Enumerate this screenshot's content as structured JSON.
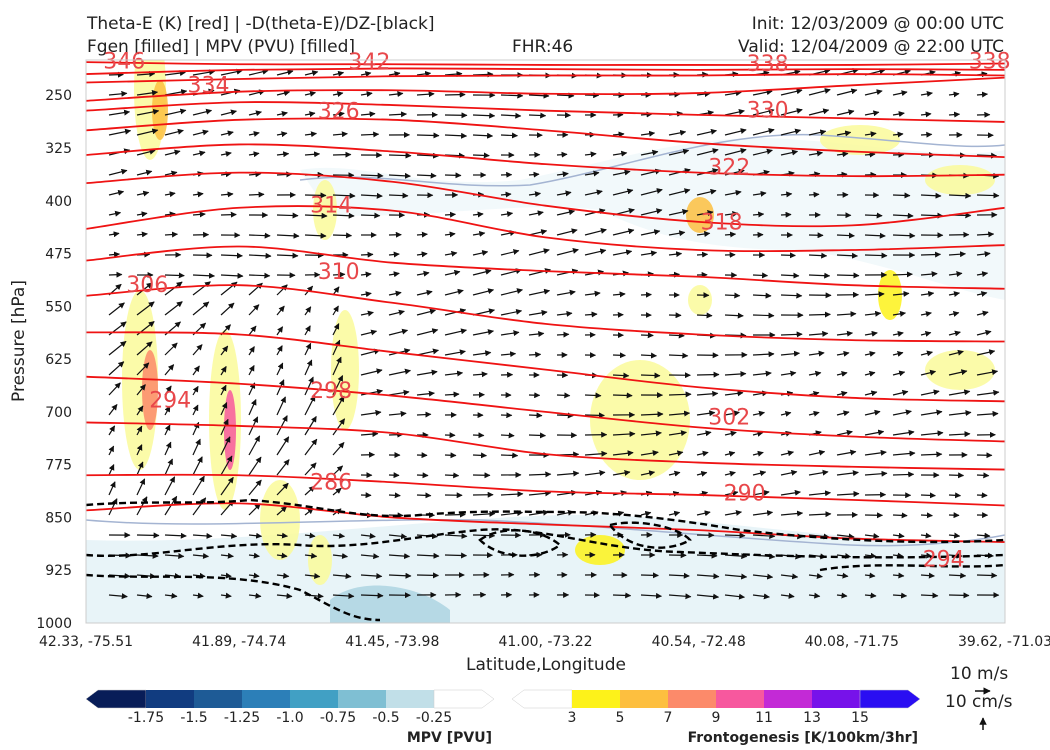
{
  "header": {
    "title_line1": "Theta-E (K) [red] | -D(theta-E)/DZ-[black]",
    "title_line2": "Fgen [filled] | MPV (PVU) [filled]",
    "fhr": "FHR:46",
    "init": "Init: 12/03/2009 @ 00:00 UTC",
    "valid": "Valid: 12/04/2009 @ 22:00 UTC"
  },
  "chart_data": {
    "type": "cross-section",
    "xlabel": "Latitude,Longitude",
    "ylabel": "Pressure [hPa]",
    "x_ticks": [
      "42.33, -75.51",
      "41.89, -74.74",
      "41.45, -73.98",
      "41.00, -73.22",
      "40.54, -72.48",
      "40.08, -71.75",
      "39.62, -71.03"
    ],
    "y_ticks": [
      250,
      325,
      400,
      475,
      550,
      625,
      700,
      775,
      850,
      925,
      1000
    ],
    "y_range": [
      200,
      1000
    ],
    "theta_e_labels": [
      {
        "value": "346",
        "x_index": 0.25,
        "p": 202
      },
      {
        "value": "342",
        "x_index": 1.85,
        "p": 203
      },
      {
        "value": "338",
        "x_index": 4.45,
        "p": 206
      },
      {
        "value": "338",
        "x_index": 5.9,
        "p": 202
      },
      {
        "value": "334",
        "x_index": 0.8,
        "p": 236
      },
      {
        "value": "330",
        "x_index": 4.45,
        "p": 272
      },
      {
        "value": "326",
        "x_index": 1.65,
        "p": 273
      },
      {
        "value": "322",
        "x_index": 4.2,
        "p": 353
      },
      {
        "value": "318",
        "x_index": 4.15,
        "p": 431
      },
      {
        "value": "314",
        "x_index": 1.6,
        "p": 407
      },
      {
        "value": "310",
        "x_index": 1.65,
        "p": 501
      },
      {
        "value": "306",
        "x_index": 0.4,
        "p": 520
      },
      {
        "value": "302",
        "x_index": 4.2,
        "p": 708
      },
      {
        "value": "298",
        "x_index": 1.6,
        "p": 670
      },
      {
        "value": "294",
        "x_index": 0.55,
        "p": 684
      },
      {
        "value": "294",
        "x_index": 5.6,
        "p": 910
      },
      {
        "value": "290",
        "x_index": 4.3,
        "p": 816
      },
      {
        "value": "286",
        "x_index": 1.6,
        "p": 800
      }
    ],
    "theta_e_contours": [
      {
        "value": 346,
        "points": [
          [
            0,
            203
          ],
          [
            1,
            206
          ],
          [
            2,
            206
          ],
          [
            3,
            207
          ],
          [
            4,
            207
          ],
          [
            5,
            207
          ],
          [
            6,
            205
          ]
        ]
      },
      {
        "value": 342,
        "points": [
          [
            0,
            220
          ],
          [
            1,
            214
          ],
          [
            2,
            212
          ],
          [
            3,
            213
          ],
          [
            4,
            214
          ],
          [
            5,
            213
          ],
          [
            6,
            214
          ]
        ]
      },
      {
        "value": 338,
        "points": [
          [
            0,
            232
          ],
          [
            1,
            227
          ],
          [
            2,
            223
          ],
          [
            3,
            222
          ],
          [
            4,
            222
          ],
          [
            5,
            220
          ],
          [
            6,
            222
          ]
        ]
      },
      {
        "value": 334,
        "points": [
          [
            0,
            258
          ],
          [
            1,
            245
          ],
          [
            2,
            243
          ],
          [
            3,
            248
          ],
          [
            4,
            247
          ],
          [
            5,
            236
          ],
          [
            6,
            225
          ]
        ]
      },
      {
        "value": 330,
        "points": [
          [
            0,
            272
          ],
          [
            1,
            260
          ],
          [
            2,
            264
          ],
          [
            3,
            272
          ],
          [
            4,
            278
          ],
          [
            5,
            283
          ],
          [
            6,
            288
          ]
        ]
      },
      {
        "value": 326,
        "points": [
          [
            0,
            300
          ],
          [
            1,
            285
          ],
          [
            2,
            285
          ],
          [
            3,
            300
          ],
          [
            4,
            318
          ],
          [
            5,
            330
          ],
          [
            6,
            338
          ]
        ]
      },
      {
        "value": 322,
        "points": [
          [
            0,
            335
          ],
          [
            1,
            320
          ],
          [
            2,
            330
          ],
          [
            3,
            348
          ],
          [
            4,
            360
          ],
          [
            5,
            365
          ],
          [
            6,
            363
          ]
        ]
      },
      {
        "value": 318,
        "points": [
          [
            0,
            375
          ],
          [
            1,
            360
          ],
          [
            2,
            373
          ],
          [
            3,
            407
          ],
          [
            4,
            430
          ],
          [
            5,
            435
          ],
          [
            6,
            410
          ]
        ]
      },
      {
        "value": 314,
        "points": [
          [
            0,
            440
          ],
          [
            1,
            410
          ],
          [
            2,
            414
          ],
          [
            3,
            452
          ],
          [
            4,
            470
          ],
          [
            5,
            470
          ],
          [
            6,
            463
          ]
        ]
      },
      {
        "value": 310,
        "points": [
          [
            0,
            485
          ],
          [
            1,
            465
          ],
          [
            2,
            488
          ],
          [
            3,
            500
          ],
          [
            4,
            508
          ],
          [
            5,
            520
          ],
          [
            6,
            525
          ]
        ]
      },
      {
        "value": 306,
        "points": [
          [
            0,
            535
          ],
          [
            1,
            520
          ],
          [
            2,
            545
          ],
          [
            3,
            575
          ],
          [
            4,
            590
          ],
          [
            5,
            598
          ],
          [
            6,
            600
          ]
        ]
      },
      {
        "value": 302,
        "points": [
          [
            0,
            587
          ],
          [
            1,
            590
          ],
          [
            2,
            615
          ],
          [
            3,
            640
          ],
          [
            4,
            665
          ],
          [
            5,
            680
          ],
          [
            6,
            685
          ]
        ]
      },
      {
        "value": 298,
        "points": [
          [
            0,
            650
          ],
          [
            1,
            660
          ],
          [
            2,
            677
          ],
          [
            3,
            700
          ],
          [
            4,
            722
          ],
          [
            5,
            735
          ],
          [
            6,
            742
          ]
        ]
      },
      {
        "value": 294,
        "points": [
          [
            0,
            715
          ],
          [
            1,
            720
          ],
          [
            2,
            730
          ],
          [
            3,
            760
          ],
          [
            4,
            772
          ],
          [
            5,
            778
          ],
          [
            6,
            782
          ]
        ]
      },
      {
        "value": 290,
        "points": [
          [
            0,
            790
          ],
          [
            1,
            790
          ],
          [
            2,
            800
          ],
          [
            3,
            813
          ],
          [
            4,
            818
          ],
          [
            5,
            825
          ],
          [
            6,
            833
          ]
        ]
      },
      {
        "value": 286,
        "points": [
          [
            0,
            840
          ],
          [
            1,
            830
          ],
          [
            2,
            850
          ],
          [
            3,
            860
          ],
          [
            4,
            868
          ],
          [
            5,
            880
          ],
          [
            6,
            885
          ]
        ]
      }
    ],
    "mpv_colorbar": {
      "label": "MPV [PVU]",
      "ticks": [
        "-1.75",
        "-1.5",
        "-1.25",
        "-1.0",
        "-0.75",
        "-0.5",
        "-0.25"
      ],
      "colors": [
        "#081d58",
        "#113c80",
        "#1e5b96",
        "#2c7fb8",
        "#41a0c4",
        "#7fbfd3",
        "#c1dfe8",
        "#ffffff"
      ]
    },
    "fgen_colorbar": {
      "label": "Frontogenesis [K/100km/3hr]",
      "ticks": [
        "3",
        "5",
        "7",
        "9",
        "11",
        "13",
        "15"
      ],
      "colors": [
        "#ffffff",
        "#fdf21a",
        "#fdbf3f",
        "#fc8a6a",
        "#f7589e",
        "#c32ad6",
        "#7712ea",
        "#2a0ef2"
      ]
    },
    "vector_key": {
      "horizontal": "10 m/s",
      "vertical": "10 cm/s"
    },
    "colors": {
      "theta_e": "#ef1313",
      "stability": "#000000",
      "mpv_outline": "#a4b4d2",
      "fgen_light": "#fafa9a"
    }
  }
}
